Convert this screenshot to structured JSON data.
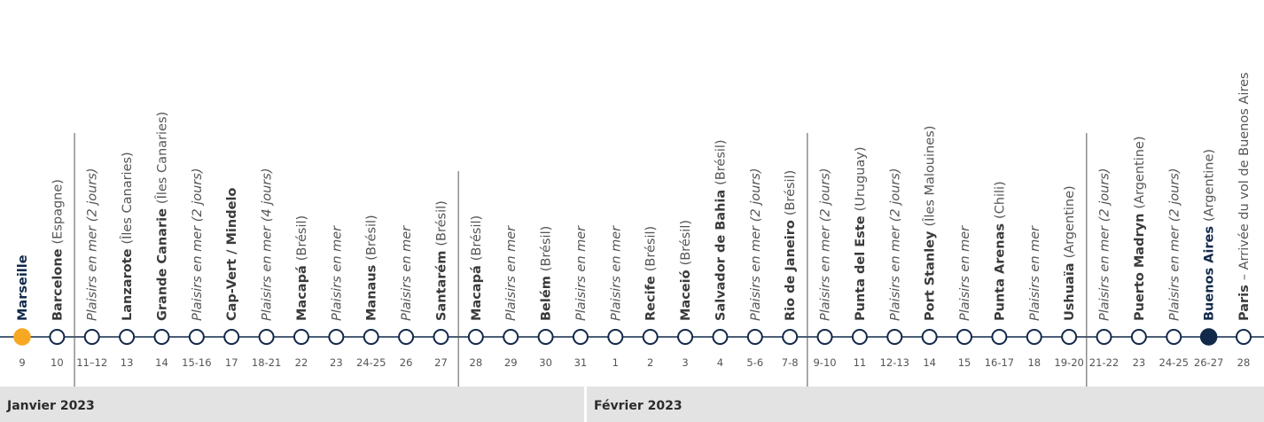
{
  "stops": [
    {
      "name": "Marseille",
      "day": "9",
      "marker": "#f7a823",
      "accent": "#12294a"
    },
    {
      "name": "Barcelone",
      "detail": "(Espagne)",
      "day": "10"
    },
    {
      "sea": "Plaisirs en mer (2 jours)",
      "day": "11–12"
    },
    {
      "name": "Lanzarote",
      "detail": "(Îles Canaries)",
      "day": "13"
    },
    {
      "name": "Grande Canarie",
      "detail": "(Îles Canaries)",
      "day": "14"
    },
    {
      "sea": "Plaisirs en mer (2 jours)",
      "day": "15-16"
    },
    {
      "name": "Cap-Vert / Mindelo",
      "day": "17"
    },
    {
      "sea": "Plaisirs en mer (4 jours)",
      "day": "18-21"
    },
    {
      "name": "Macapá",
      "detail": "(Brésil)",
      "day": "22"
    },
    {
      "sea": "Plaisirs en mer",
      "day": "23"
    },
    {
      "name": "Manaus",
      "detail": "(Brésil)",
      "day": "24-25"
    },
    {
      "sea": "Plaisirs en mer",
      "day": "26"
    },
    {
      "name": "Santarém",
      "detail": "(Brésil)",
      "day": "27"
    },
    {
      "name": "Macapá",
      "detail": "(Brésil)",
      "day": "28"
    },
    {
      "sea": "Plaisirs en mer",
      "day": "29"
    },
    {
      "name": "Belém",
      "detail": "(Brésil)",
      "day": "30"
    },
    {
      "sea": "Plaisirs en mer",
      "day": "31"
    },
    {
      "sea": "Plaisirs en mer",
      "day": "1"
    },
    {
      "name": "Recife",
      "detail": "(Brésil)",
      "day": "2"
    },
    {
      "name": "Maceió",
      "detail": "(Brésil)",
      "day": "3"
    },
    {
      "name": "Salvador de Bahia",
      "detail": "(Brésil)",
      "day": "4"
    },
    {
      "sea": "Plaisirs en mer (2 jours)",
      "day": "5-6"
    },
    {
      "name": "Rio de Janeiro",
      "detail": "(Brésil)",
      "day": "7-8"
    },
    {
      "sea": "Plaisirs en mer (2 jours)",
      "day": "9-10"
    },
    {
      "name": "Punta del Este",
      "detail": "(Uruguay)",
      "day": "11"
    },
    {
      "sea": "Plaisirs en mer (2 jours)",
      "day": "12-13"
    },
    {
      "name": "Port Stanley",
      "detail": "(Îles Malouines)",
      "day": "14"
    },
    {
      "sea": "Plaisirs en mer",
      "day": "15"
    },
    {
      "name": "Punta Arenas",
      "detail": "(Chili)",
      "day": "16-17"
    },
    {
      "sea": "Plaisirs en mer",
      "day": "18"
    },
    {
      "name": "Ushuaïa",
      "detail": "(Argentine)",
      "day": "19-20"
    },
    {
      "sea": "Plaisirs en mer (2 jours)",
      "day": "21-22"
    },
    {
      "name": "Puerto Madryn",
      "detail": "(Argentine)",
      "day": "23"
    },
    {
      "sea": "Plaisirs en mer (2 jours)",
      "day": "24-25"
    },
    {
      "name": "Buenos Aires",
      "detail": "(Argentine)",
      "day": "26-27",
      "marker": "#12294a",
      "accent": "#12294a"
    },
    {
      "name": "Paris",
      "detail": "– Arrivée du vol de Buenos Aires",
      "day": "28"
    }
  ],
  "months": [
    "Janvier 2023",
    "Février 2023"
  ]
}
